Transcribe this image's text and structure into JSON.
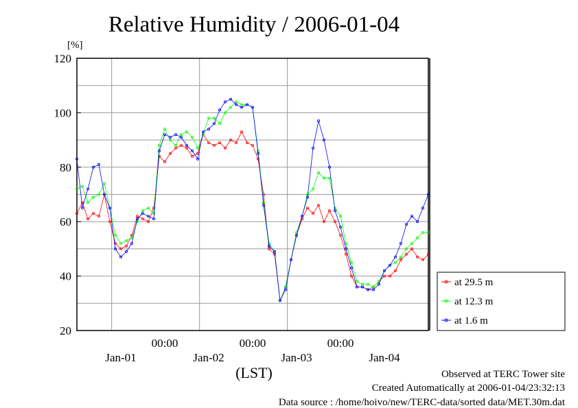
{
  "chart_data": {
    "type": "line",
    "title": "Relative Humidity / 2006-01-04",
    "yunit": "[%]",
    "ylim": [
      20,
      120
    ],
    "yticks": [
      20,
      40,
      60,
      80,
      100,
      120
    ],
    "xlabel": "(LST)",
    "time_labels": [
      "00:00",
      "00:00",
      "00:00"
    ],
    "date_labels": [
      "Jan-01",
      "Jan-02",
      "Jan-03",
      "Jan-04"
    ],
    "x_unit": "hours since 2006-01-01 00:00 LST",
    "xlim": [
      -9.5,
      86.5
    ],
    "grid": true,
    "legend_position": "right",
    "series": [
      {
        "name": "at 29.5 m",
        "color": "#ff0000",
        "x": [
          -9.5,
          -8,
          -6.5,
          -5,
          -3.5,
          -2,
          -0.5,
          1,
          2.5,
          4,
          5.5,
          7,
          8.5,
          10,
          11.5,
          13,
          14.5,
          16,
          17.5,
          19,
          20.5,
          22,
          23.5,
          25,
          26.5,
          28,
          29.5,
          31,
          32.5,
          34,
          35.5,
          37,
          38.5,
          40,
          41.5,
          43,
          44.5,
          46,
          47.5,
          49,
          50.5,
          52,
          53.5,
          55,
          56.5,
          58,
          59.5,
          61,
          62.5,
          64,
          65.5,
          67,
          68.5,
          70,
          71.5,
          73,
          74.5,
          76,
          77.5,
          79,
          80.5,
          82,
          83.5,
          85,
          86.5
        ],
        "y": [
          63,
          67,
          61,
          63,
          62,
          70,
          60,
          52,
          50,
          51,
          55,
          62,
          61,
          60,
          65,
          84,
          82,
          85,
          87,
          88,
          87,
          84,
          85,
          92,
          89,
          88,
          89,
          87,
          90,
          89,
          93,
          89,
          88,
          83,
          70,
          50,
          48,
          31,
          36,
          46,
          55,
          61,
          65,
          63,
          66,
          60,
          64,
          60,
          55,
          48,
          40,
          36,
          36,
          35,
          36,
          38,
          40,
          40,
          42,
          46,
          48,
          50,
          47,
          46,
          48
        ]
      },
      {
        "name": "at 12.3 m",
        "color": "#00ff00",
        "x": [
          -9.5,
          -8,
          -6.5,
          -5,
          -3.5,
          -2,
          -0.5,
          1,
          2.5,
          4,
          5.5,
          7,
          8.5,
          10,
          11.5,
          13,
          14.5,
          16,
          17.5,
          19,
          20.5,
          22,
          23.5,
          25,
          26.5,
          28,
          29.5,
          31,
          32.5,
          34,
          35.5,
          37,
          38.5,
          40,
          41.5,
          43,
          44.5,
          46,
          47.5,
          49,
          50.5,
          52,
          53.5,
          55,
          56.5,
          58,
          59.5,
          61,
          62.5,
          64,
          65.5,
          67,
          68.5,
          70,
          71.5,
          73,
          74.5,
          76,
          77.5,
          79,
          80.5,
          82,
          83.5,
          85,
          86.5
        ],
        "y": [
          72,
          73,
          67,
          69,
          70,
          74,
          65,
          55,
          52,
          53,
          54,
          60,
          64,
          65,
          63,
          88,
          94,
          90,
          88,
          92,
          93,
          91,
          87,
          92,
          98,
          98,
          96,
          100,
          102,
          104,
          103,
          103,
          102,
          86,
          67,
          52,
          49,
          31,
          36,
          46,
          56,
          62,
          70,
          72,
          78,
          76,
          76,
          65,
          62,
          52,
          45,
          38,
          37,
          37,
          36,
          38,
          42,
          44,
          45,
          47,
          50,
          52,
          54,
          56,
          56
        ]
      },
      {
        "name": "at 1.6 m",
        "color": "#0000ff",
        "x": [
          -9.5,
          -8,
          -6.5,
          -5,
          -3.5,
          -2,
          -0.5,
          1,
          2.5,
          4,
          5.5,
          7,
          8.5,
          10,
          11.5,
          13,
          14.5,
          16,
          17.5,
          19,
          20.5,
          22,
          23.5,
          25,
          26.5,
          28,
          29.5,
          31,
          32.5,
          34,
          35.5,
          37,
          38.5,
          40,
          41.5,
          43,
          44.5,
          46,
          47.5,
          49,
          50.5,
          52,
          53.5,
          55,
          56.5,
          58,
          59.5,
          61,
          62.5,
          64,
          65.5,
          67,
          68.5,
          70,
          71.5,
          73,
          74.5,
          76,
          77.5,
          79,
          80.5,
          82,
          83.5,
          85,
          86.5
        ],
        "y": [
          83,
          65,
          72,
          80,
          81,
          70,
          65,
          50,
          47,
          49,
          52,
          61,
          63,
          62,
          61,
          86,
          92,
          91,
          92,
          91,
          88,
          86,
          83,
          93,
          94,
          96,
          101,
          104,
          105,
          103,
          102,
          103,
          102,
          85,
          66,
          51,
          49,
          31,
          35,
          46,
          55,
          62,
          69,
          87,
          97,
          90,
          80,
          64,
          58,
          50,
          43,
          36,
          36,
          35,
          35,
          37,
          42,
          44,
          47,
          52,
          59,
          62,
          60,
          65,
          70
        ]
      }
    ]
  },
  "footer": {
    "line1": "Observed at TERC Tower site",
    "line2": "Created Automatically at 2006-01-04/23:32:13",
    "line3": "Data source : /home/hoivo/new/TERC-data/sorted  data/MET.30m.dat"
  }
}
